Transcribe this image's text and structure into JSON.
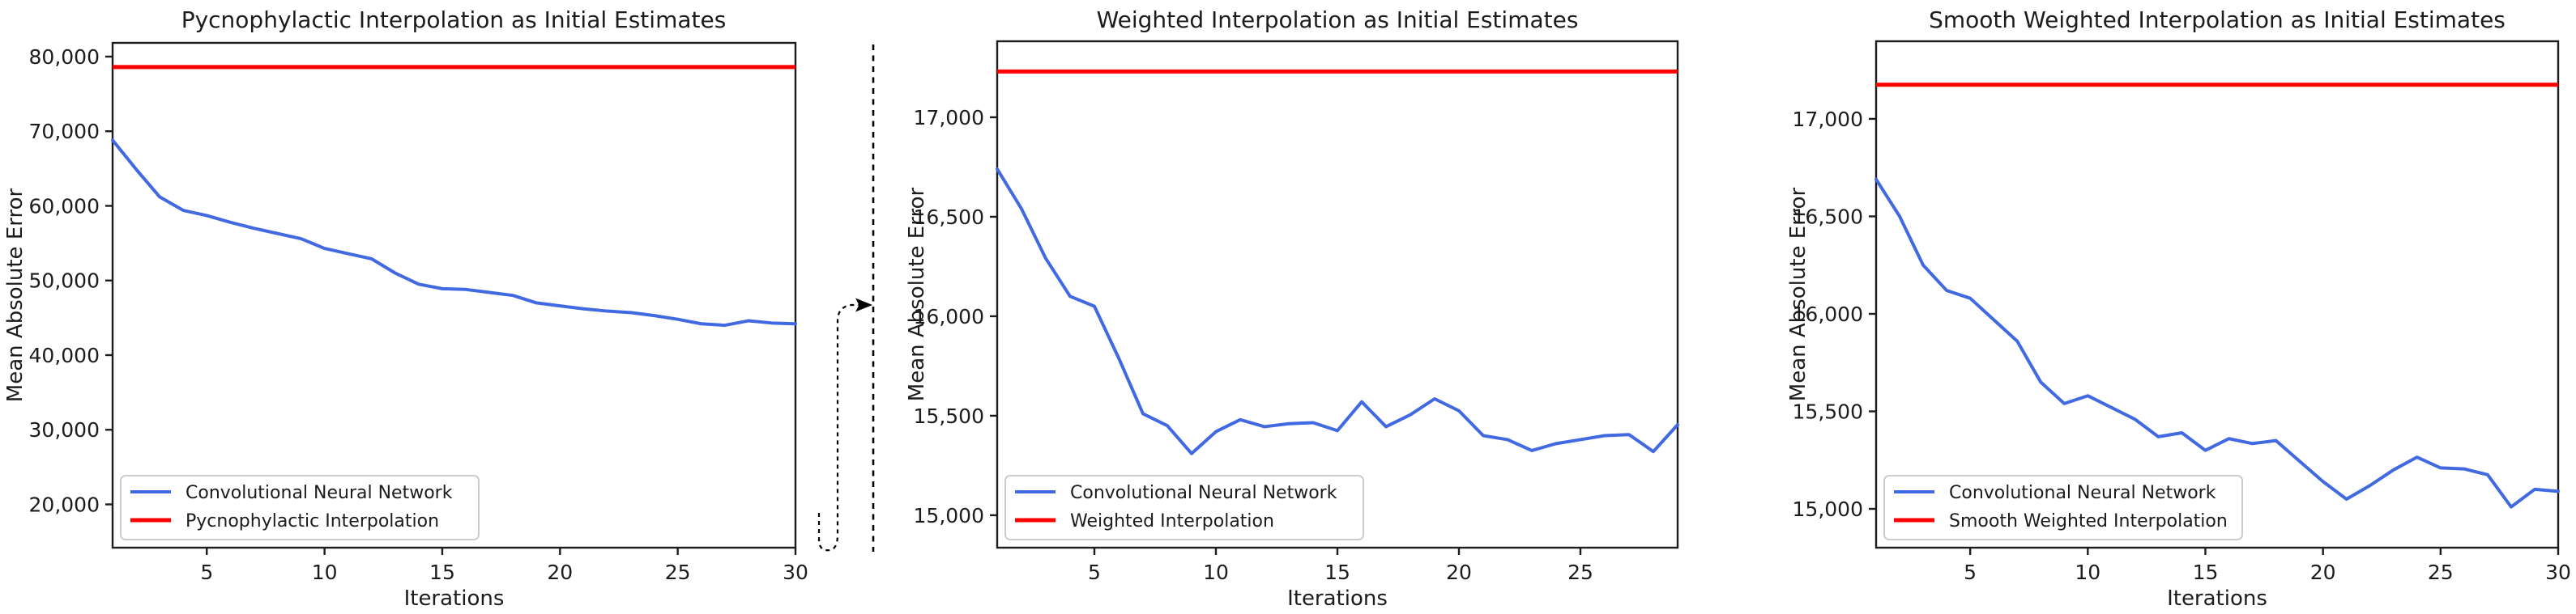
{
  "figure": {
    "background": "#ffffff",
    "blue": "#4169e1",
    "red": "#ff0000",
    "text_color": "#1c1c1c",
    "spine_color": "#1c1c1c",
    "legend_border": "#cccccc"
  },
  "annotations": {
    "divider_line": "dashed-vertical-divider",
    "zoom_arrow": "dashed-curved-arrow-pointing-right"
  },
  "chart_data": [
    {
      "type": "line",
      "title": "Pycnophylactic Interpolation as Initial Estimates",
      "xlabel": "Iterations",
      "ylabel": "Mean Absolute Error",
      "xlim": [
        1,
        30
      ],
      "ylim": [
        14200,
        81840
      ],
      "xticks": [
        5,
        10,
        15,
        20,
        25,
        30
      ],
      "yticks": [
        20000,
        30000,
        40000,
        50000,
        60000,
        70000,
        80000
      ],
      "ytick_labels": [
        "20,000",
        "30,000",
        "40,000",
        "50,000",
        "60,000",
        "70,000",
        "80,000"
      ],
      "grid": false,
      "legend_position": "lower left",
      "series": [
        {
          "name": "Convolutional Neural Network",
          "color": "#4169e1",
          "style": "solid",
          "x": [
            1,
            2,
            3,
            4,
            5,
            6,
            7,
            8,
            9,
            10,
            11,
            12,
            13,
            14,
            15,
            16,
            17,
            18,
            19,
            20,
            21,
            22,
            23,
            24,
            25,
            26,
            27,
            28,
            29,
            30
          ],
          "y": [
            68800,
            64900,
            61200,
            59400,
            58700,
            57800,
            57000,
            56300,
            55600,
            54300,
            53600,
            52900,
            51000,
            49500,
            48900,
            48800,
            48400,
            48000,
            47000,
            46600,
            46200,
            45900,
            45700,
            45300,
            44800,
            44200,
            44000,
            44600,
            44300,
            44200
          ]
        },
        {
          "name": "Pycnophylactic Interpolation",
          "color": "#ff0000",
          "style": "hline",
          "y": 78600
        }
      ]
    },
    {
      "type": "line",
      "title": "Weighted Interpolation as Initial Estimates",
      "xlabel": "Iterations",
      "ylabel": "Mean Absolute Error",
      "xlim": [
        1,
        29
      ],
      "ylim": [
        14837,
        17382
      ],
      "xticks": [
        5,
        10,
        15,
        20,
        25
      ],
      "yticks": [
        15000,
        15500,
        16000,
        16500,
        17000
      ],
      "ytick_labels": [
        "15,000",
        "15,500",
        "16,000",
        "16,500",
        "17,000"
      ],
      "grid": false,
      "legend_position": "lower left",
      "series": [
        {
          "name": "Convolutional Neural Network",
          "color": "#4169e1",
          "style": "solid",
          "x": [
            1,
            2,
            3,
            4,
            5,
            6,
            7,
            8,
            9,
            10,
            11,
            12,
            13,
            14,
            15,
            16,
            17,
            18,
            19,
            20,
            21,
            22,
            23,
            24,
            25,
            26,
            27,
            28,
            29
          ],
          "y": [
            16740,
            16540,
            16290,
            16100,
            16050,
            15790,
            15510,
            15450,
            15310,
            15420,
            15480,
            15445,
            15460,
            15465,
            15425,
            15570,
            15445,
            15505,
            15585,
            15525,
            15400,
            15380,
            15325,
            15360,
            15380,
            15400,
            15405,
            15320,
            15455
          ]
        },
        {
          "name": "Weighted Interpolation",
          "color": "#ff0000",
          "style": "hline",
          "y": 17230
        }
      ]
    },
    {
      "type": "line",
      "title": "Smooth Weighted Interpolation as Initial Estimates",
      "xlabel": "Iterations",
      "ylabel": "Mean Absolute Error",
      "xlim": [
        1,
        30
      ],
      "ylim": [
        14801,
        17398
      ],
      "xticks": [
        5,
        10,
        15,
        20,
        25,
        30
      ],
      "yticks": [
        15000,
        15500,
        16000,
        16500,
        17000
      ],
      "ytick_labels": [
        "15,000",
        "15,500",
        "16,000",
        "16,500",
        "17,000"
      ],
      "grid": false,
      "legend_position": "lower left",
      "series": [
        {
          "name": "Convolutional Neural Network",
          "color": "#4169e1",
          "style": "solid",
          "x": [
            1,
            2,
            3,
            4,
            5,
            6,
            7,
            8,
            9,
            10,
            11,
            12,
            13,
            14,
            15,
            16,
            17,
            18,
            19,
            20,
            21,
            22,
            23,
            24,
            25,
            26,
            27,
            28,
            29,
            30
          ],
          "y": [
            16690,
            16500,
            16250,
            16120,
            16080,
            15970,
            15860,
            15650,
            15540,
            15580,
            15520,
            15460,
            15370,
            15390,
            15300,
            15360,
            15335,
            15350,
            15245,
            15140,
            15050,
            15120,
            15200,
            15265,
            15210,
            15205,
            15175,
            15010,
            15100,
            15090
          ]
        },
        {
          "name": "Smooth Weighted Interpolation",
          "color": "#ff0000",
          "style": "hline",
          "y": 17175
        }
      ]
    }
  ]
}
